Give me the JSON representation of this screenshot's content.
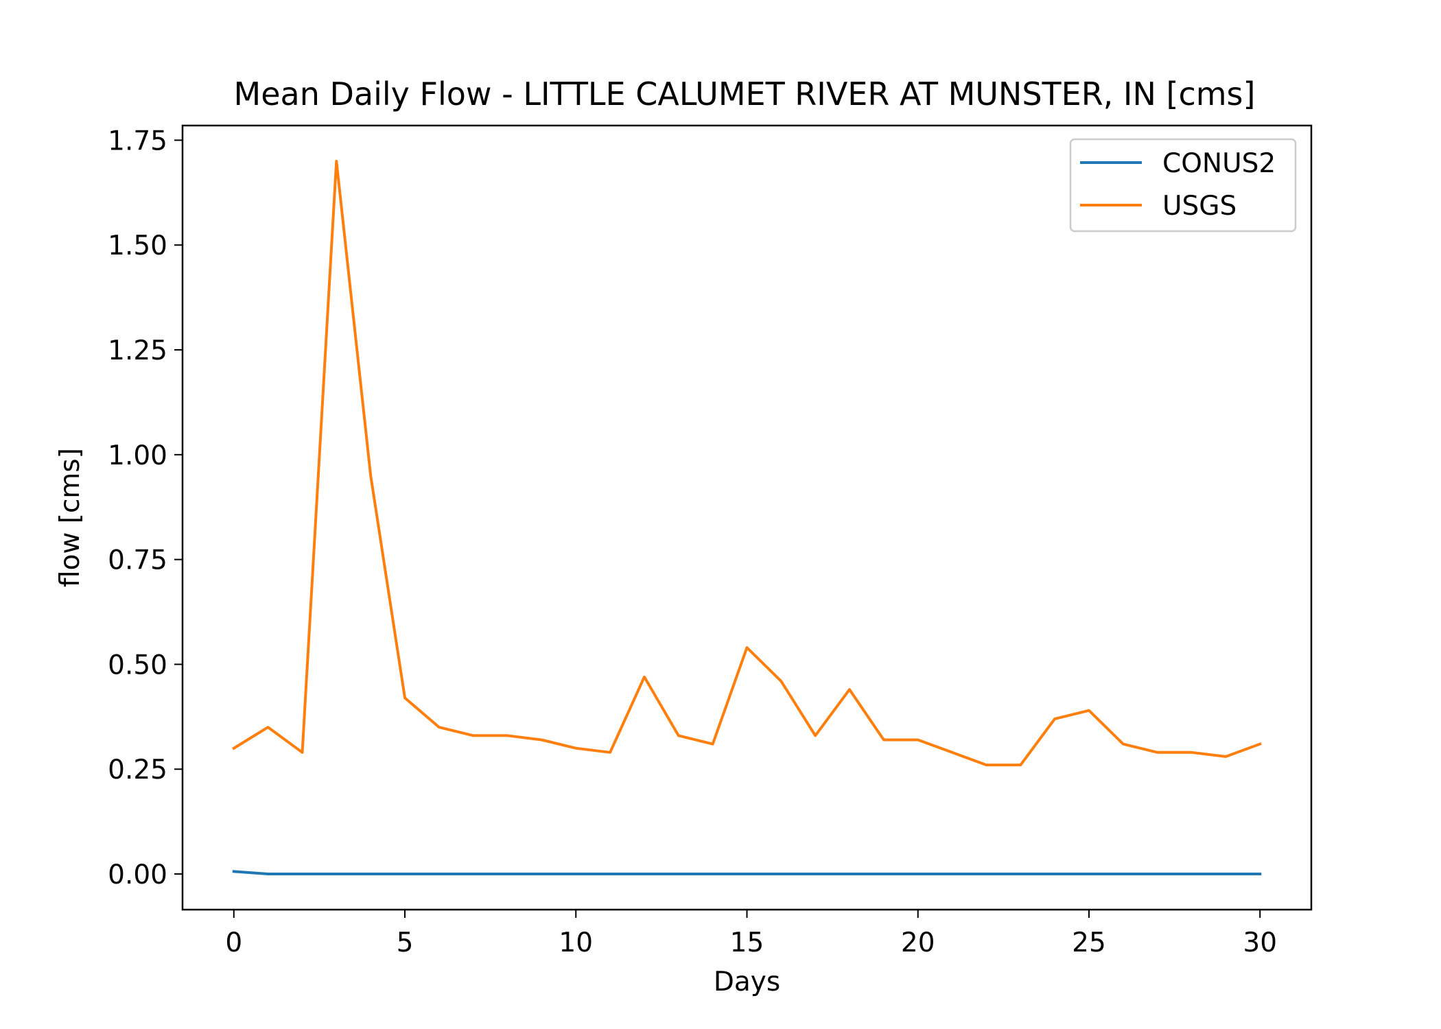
{
  "chart_data": {
    "type": "line",
    "title": "Mean Daily Flow - LITTLE CALUMET RIVER AT MUNSTER, IN [cms]",
    "xlabel": "Days",
    "ylabel": "flow [cms]",
    "xlim": [
      -1.5,
      31.5
    ],
    "ylim": [
      -0.085,
      1.785
    ],
    "xticks": [
      0,
      5,
      10,
      15,
      20,
      25,
      30
    ],
    "xtick_labels": [
      "0",
      "5",
      "10",
      "15",
      "20",
      "25",
      "30"
    ],
    "yticks": [
      0,
      0.25,
      0.5,
      0.75,
      1.0,
      1.25,
      1.5,
      1.75
    ],
    "ytick_labels": [
      "0.00",
      "0.25",
      "0.50",
      "0.75",
      "1.00",
      "1.25",
      "1.50",
      "1.75"
    ],
    "grid": false,
    "legend_position": "top-right",
    "x": [
      0,
      1,
      2,
      3,
      4,
      5,
      6,
      7,
      8,
      9,
      10,
      11,
      12,
      13,
      14,
      15,
      16,
      17,
      18,
      19,
      20,
      21,
      22,
      23,
      24,
      25,
      26,
      27,
      28,
      29,
      30
    ],
    "series": [
      {
        "name": "CONUS2",
        "color": "#1f77b4",
        "values": [
          0.006,
          0.0,
          0.0,
          0.0,
          0.0,
          0.0,
          0.0,
          0.0,
          0.0,
          0.0,
          0.0,
          0.0,
          0.0,
          0.0,
          0.0,
          0.0,
          0.0,
          0.0,
          0.0,
          0.0,
          0.0,
          0.0,
          0.0,
          0.0,
          0.0,
          0.0,
          0.0,
          0.0,
          0.0,
          0.0,
          0.0
        ]
      },
      {
        "name": "USGS",
        "color": "#ff7f0e",
        "values": [
          0.3,
          0.35,
          0.29,
          1.7,
          0.95,
          0.42,
          0.35,
          0.33,
          0.33,
          0.32,
          0.3,
          0.29,
          0.47,
          0.33,
          0.31,
          0.54,
          0.46,
          0.33,
          0.44,
          0.32,
          0.32,
          0.29,
          0.26,
          0.26,
          0.37,
          0.39,
          0.31,
          0.29,
          0.29,
          0.28,
          0.31
        ]
      }
    ]
  }
}
